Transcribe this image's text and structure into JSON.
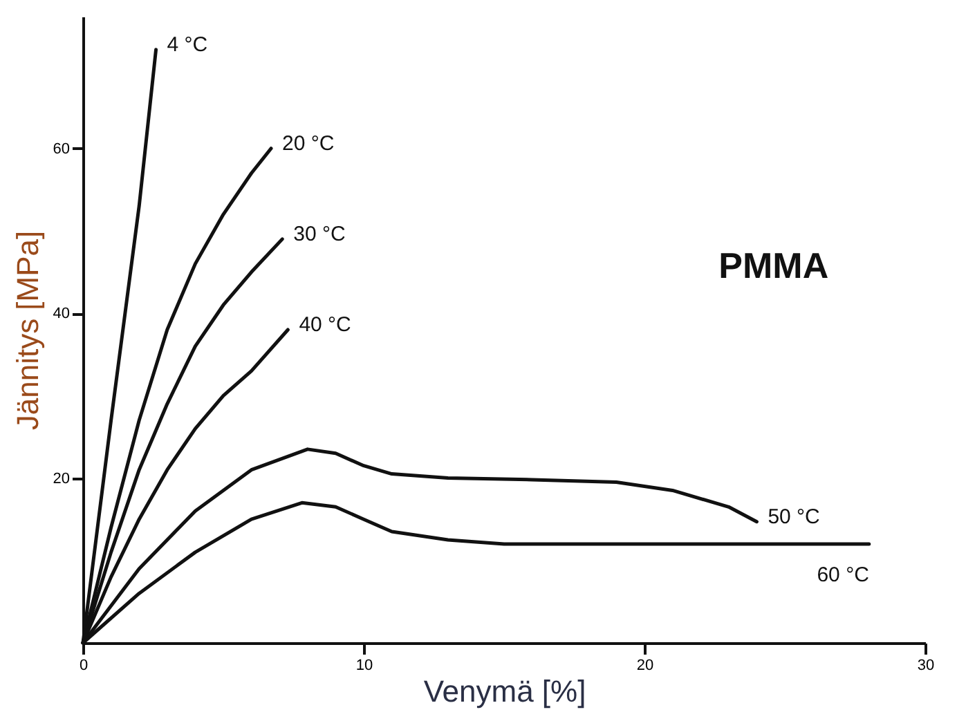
{
  "chart_data": {
    "type": "line",
    "xlabel": "Venymä [%]",
    "ylabel": "Jännitys [MPa]",
    "annotations": [
      "PMMA"
    ],
    "xlim": [
      0,
      30
    ],
    "ylim": [
      0,
      76
    ],
    "xticks": [
      0,
      10,
      20,
      30
    ],
    "yticks": [
      20,
      40,
      60
    ],
    "grid": false,
    "legend": false,
    "marker": "none",
    "line_style": "solid",
    "series": [
      {
        "name": "4 °C",
        "color": "#111111",
        "x": [
          0,
          1,
          2,
          2.6
        ],
        "values": [
          0,
          27,
          53,
          72
        ]
      },
      {
        "name": "20 °C",
        "color": "#111111",
        "x": [
          0,
          1,
          2,
          3,
          4,
          5,
          6,
          6.7
        ],
        "values": [
          0,
          14,
          27,
          38,
          46,
          52,
          57,
          60
        ]
      },
      {
        "name": "30 °C",
        "color": "#111111",
        "x": [
          0,
          1,
          2,
          3,
          4,
          5,
          6,
          7.1
        ],
        "values": [
          0,
          11,
          21,
          29,
          36,
          41,
          45,
          49
        ]
      },
      {
        "name": "40 °C",
        "color": "#111111",
        "x": [
          0,
          1,
          2,
          3,
          4,
          5,
          6,
          7.3
        ],
        "values": [
          0,
          8,
          15,
          21,
          26,
          30,
          33,
          38
        ]
      },
      {
        "name": "50 °C",
        "color": "#111111",
        "x": [
          0,
          2,
          4,
          6,
          8,
          9,
          10,
          11,
          13,
          16,
          19,
          21,
          23,
          24
        ],
        "values": [
          0,
          9,
          16,
          21,
          23.5,
          23,
          21.5,
          20.5,
          20,
          19.8,
          19.5,
          18.5,
          16.5,
          14.7
        ]
      },
      {
        "name": "60 °C",
        "color": "#111111",
        "x": [
          0,
          2,
          4,
          6,
          7.8,
          9,
          10,
          11,
          13,
          15,
          20,
          28
        ],
        "values": [
          0,
          6,
          11,
          15,
          17,
          16.5,
          15,
          13.5,
          12.5,
          12,
          12,
          12
        ]
      }
    ]
  }
}
